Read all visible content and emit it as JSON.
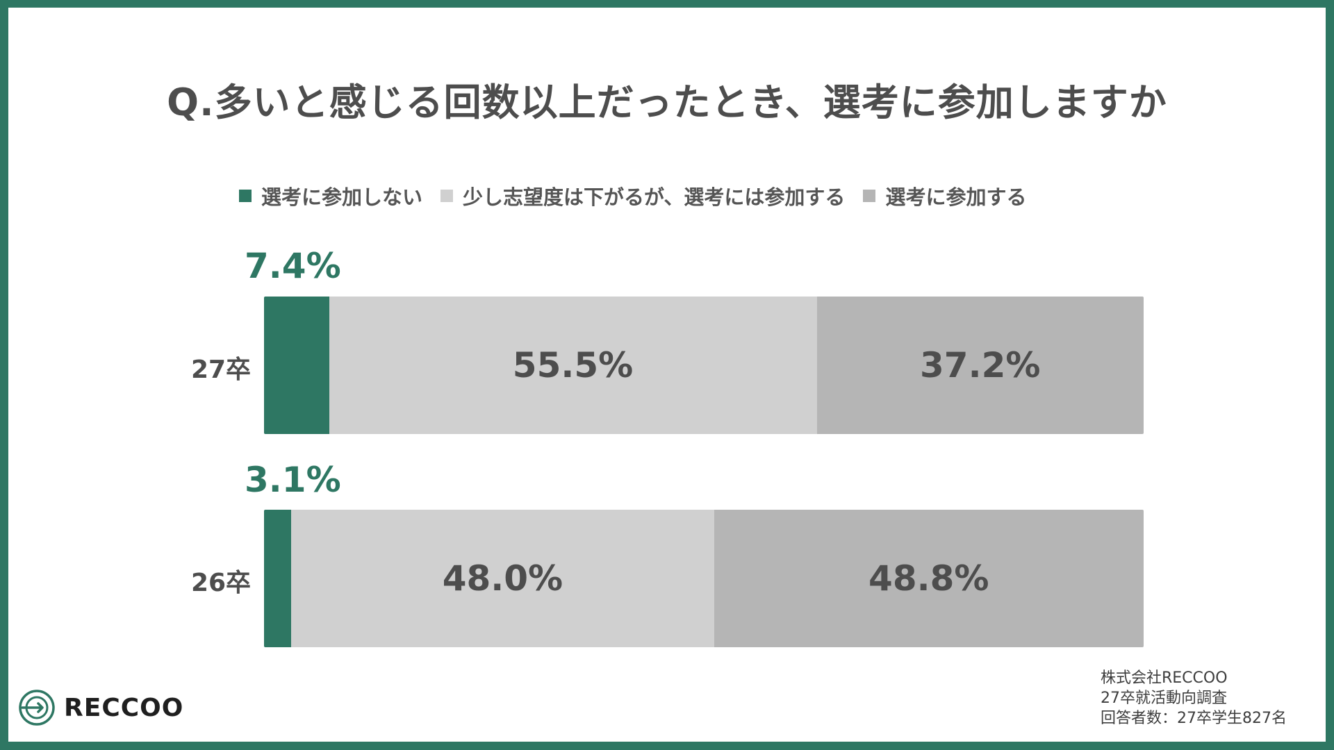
{
  "title": "Q.多いと感じる回数以上だったとき、選考に参加しますか",
  "legend": [
    {
      "label": "選考に参加しない",
      "color": "#2e7763"
    },
    {
      "label": "少し志望度は下がるが、選考には参加する",
      "color": "#d0d0d0"
    },
    {
      "label": "選考に参加する",
      "color": "#b5b5b5"
    }
  ],
  "chart_data": {
    "type": "bar",
    "orientation": "horizontal",
    "stacked": true,
    "title": "Q.多いと感じる回数以上だったとき、選考に参加しますか",
    "categories": [
      "27卒",
      "26卒"
    ],
    "series": [
      {
        "name": "選考に参加しない",
        "values": [
          7.4,
          3.1
        ],
        "labels": [
          "7.4%",
          "3.1%"
        ],
        "color": "#2e7763"
      },
      {
        "name": "少し志望度は下がるが、選考には参加する",
        "values": [
          55.5,
          48.0
        ],
        "labels": [
          "55.5%",
          "48.0%"
        ],
        "color": "#d0d0d0"
      },
      {
        "name": "選考に参加する",
        "values": [
          37.2,
          48.8
        ],
        "labels": [
          "37.2%",
          "48.8%"
        ],
        "color": "#b5b5b5"
      }
    ],
    "xlim": [
      0,
      100
    ],
    "grid": false,
    "legend_position": "top"
  },
  "logo": {
    "text": "RECCOO",
    "icon": "reccoo-logo-icon"
  },
  "source": [
    "株式会社RECCOO",
    "27卒就活動向調査",
    "回答者数：27卒学生827名"
  ]
}
